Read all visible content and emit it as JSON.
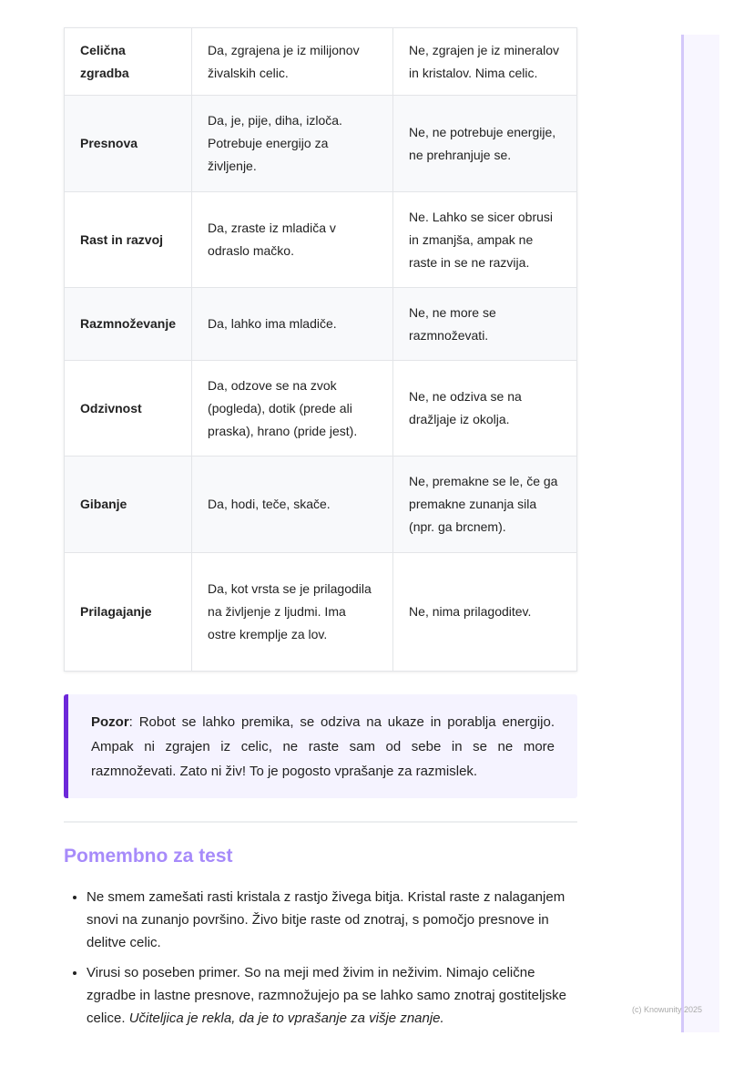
{
  "table": {
    "rows": [
      {
        "criterion": "Celična zgradba",
        "cat": "Da, zgrajena je iz milijonov živalskih celic.",
        "stone": "Ne, zgrajen je iz mineralov in kristalov. Nima celic."
      },
      {
        "criterion": "Presnova",
        "cat": "Da, je, pije, diha, izloča. Potrebuje energijo za življenje.",
        "stone": "Ne, ne potrebuje energije, ne prehranjuje se."
      },
      {
        "criterion": "Rast in razvoj",
        "cat": "Da, zraste iz mladiča v odraslo mačko.",
        "stone": "Ne. Lahko se sicer obrusi in zmanjša, ampak ne raste in se ne razvija."
      },
      {
        "criterion": "Razmnoževanje",
        "cat": "Da, lahko ima mladiče.",
        "stone": "Ne, ne more se razmnoževati."
      },
      {
        "criterion": "Odzivnost",
        "cat": "Da, odzove se na zvok (pogleda), dotik (prede ali praska), hrano (pride jest).",
        "stone": "Ne, ne odziva se na dražljaje iz okolja."
      },
      {
        "criterion": "Gibanje",
        "cat": "Da, hodi, teče, skače.",
        "stone": "Ne, premakne se le, če ga premakne zunanja sila (npr. ga brcnem)."
      },
      {
        "criterion": "Prilagajanje",
        "cat": "Da, kot vrsta se je prilagodila na življenje z ljudmi. Ima ostre kremplje za lov.",
        "stone": "Ne, nima prilagoditev."
      }
    ]
  },
  "callout": {
    "label": "Pozor",
    "text": ": Robot se lahko premika, se odziva na ukaze in porablja energijo. Ampak ni zgrajen iz celic, ne raste sam od sebe in se ne more razmnoževati. Zato ni živ! To je pogosto vprašanje za razmislek.",
    "accent": "#6d28d9"
  },
  "section": {
    "title": "Pomembno za test",
    "bullets": [
      {
        "text": "Ne smem zamešati rasti kristala z rastjo živega bitja. Kristal raste z nalaganjem snovi na zunanjo površino. Živo bitje raste od znotraj, s pomočjo presnove in delitve celic."
      },
      {
        "text": "Virusi so poseben primer. So na meji med živim in neživim. Nimajo celične zgradbe in lastne presnove, razmnožujejo pa se lahko samo znotraj gostiteljske celice. ",
        "italic": "Učiteljica je rekla, da je to vprašanje za višje znanje."
      }
    ]
  },
  "footer": {
    "copyright": "(c) Knowunity 2025"
  }
}
